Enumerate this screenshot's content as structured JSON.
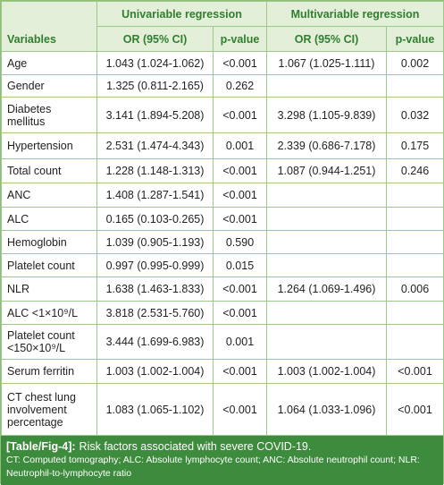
{
  "header": {
    "variables": "Variables",
    "group1": "Univariable regression",
    "group2": "Multivariable regression",
    "or_label": "OR (95% CI)",
    "p_label": "p-value"
  },
  "rows": [
    {
      "variable": "Age",
      "uni_or": "1.043 (1.024-1.062)",
      "uni_p": "<0.001",
      "multi_or": "1.067 (1.025-1.111)",
      "multi_p": "0.002"
    },
    {
      "variable": "Gender",
      "uni_or": "1.325 (0.811-2.165)",
      "uni_p": "0.262"
    },
    {
      "variable": "Diabetes mellitus",
      "uni_or": "3.141 (1.894-5.208)",
      "uni_p": "<0.001",
      "multi_or": "3.298 (1.105-9.839)",
      "multi_p": "0.032"
    },
    {
      "variable": "Hypertension",
      "uni_or": "2.531 (1.474-4.343)",
      "uni_p": "0.001",
      "multi_or": "2.339 (0.686-7.178)",
      "multi_p": "0.175"
    },
    {
      "variable": "Total count",
      "uni_or": "1.228 (1.148-1.313)",
      "uni_p": "<0.001",
      "multi_or": "1.087 (0.944-1.251)",
      "multi_p": "0.246"
    },
    {
      "variable": "ANC",
      "uni_or": "1.408 (1.287-1.541)",
      "uni_p": "<0.001"
    },
    {
      "variable": "ALC",
      "uni_or": "0.165 (0.103-0.265)",
      "uni_p": "<0.001"
    },
    {
      "variable": "Hemoglobin",
      "uni_or": "1.039 (0.905-1.193)",
      "uni_p": "0.590"
    },
    {
      "variable": "Platelet count",
      "uni_or": "0.997 (0.995-0.999)",
      "uni_p": "0.015"
    },
    {
      "variable": "NLR",
      "uni_or": "1.638 (1.463-1.833)",
      "uni_p": "<0.001",
      "multi_or": "1.264 (1.069-1.496)",
      "multi_p": "0.006"
    },
    {
      "variable": "ALC <1×10⁹/L",
      "uni_or": "3.818 (2.531-5.760)",
      "uni_p": "<0.001"
    },
    {
      "variable": "Platelet count <150×10⁹/L",
      "uni_or": "3.444 (1.699-6.983)",
      "uni_p": "0.001"
    },
    {
      "variable": "Serum ferritin",
      "uni_or": "1.003 (1.002-1.004)",
      "uni_p": "<0.001",
      "multi_or": "1.003 (1.002-1.004)",
      "multi_p": "<0.001"
    },
    {
      "variable": "CT chest lung involvement percentage",
      "uni_or": "1.083 (1.065-1.102)",
      "uni_p": "<0.001",
      "multi_or": "1.064 (1.033-1.096)",
      "multi_p": "<0.001"
    }
  ],
  "caption": {
    "label": "[Table/Fig-4]:",
    "text": "Risk factors associated with severe COVID-19.",
    "note": "CT: Computed tomography; ALC: Absolute lymphocyte count; ANC: Absolute neutrophil count; NLR: Neutrophil-to-lymphocyte ratio"
  }
}
